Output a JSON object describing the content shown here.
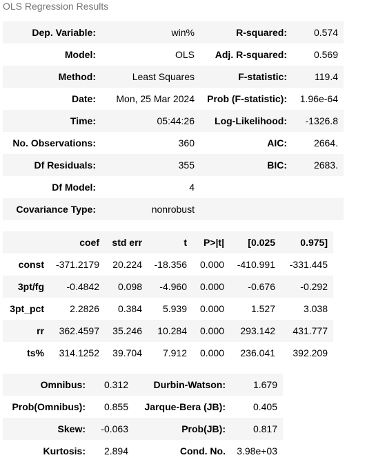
{
  "caption": "OLS Regression Results",
  "summary": {
    "rows": [
      [
        "Dep. Variable:",
        "win%",
        "R-squared:",
        "0.574"
      ],
      [
        "Model:",
        "OLS",
        "Adj. R-squared:",
        "0.569"
      ],
      [
        "Method:",
        "Least Squares",
        "F-statistic:",
        "119.4"
      ],
      [
        "Date:",
        "Mon, 25 Mar 2024",
        "Prob (F-statistic):",
        "1.96e-64"
      ],
      [
        "Time:",
        "05:44:26",
        "Log-Likelihood:",
        "-1326.8"
      ],
      [
        "No. Observations:",
        "360",
        "AIC:",
        "2664."
      ],
      [
        "Df Residuals:",
        "355",
        "BIC:",
        "2683."
      ],
      [
        "Df Model:",
        "4",
        "",
        ""
      ],
      [
        "Covariance Type:",
        "nonrobust",
        "",
        ""
      ]
    ]
  },
  "coef_table": {
    "headers": [
      "",
      "coef",
      "std err",
      "t",
      "P>|t|",
      "[0.025",
      "0.975]"
    ],
    "rows": [
      [
        "const",
        "-371.2179",
        "20.224",
        "-18.356",
        "0.000",
        "-410.991",
        "-331.445"
      ],
      [
        "3pt/fg",
        "-0.4842",
        "0.098",
        "-4.960",
        "0.000",
        "-0.676",
        "-0.292"
      ],
      [
        "3pt_pct",
        "2.2826",
        "0.384",
        "5.939",
        "0.000",
        "1.527",
        "3.038"
      ],
      [
        "rr",
        "362.4597",
        "35.246",
        "10.284",
        "0.000",
        "293.142",
        "431.777"
      ],
      [
        "ts%",
        "314.1252",
        "39.704",
        "7.912",
        "0.000",
        "236.041",
        "392.209"
      ]
    ]
  },
  "diagnostics": {
    "rows": [
      [
        "Omnibus:",
        "0.312",
        "Durbin-Watson:",
        "1.679"
      ],
      [
        "Prob(Omnibus):",
        "0.855",
        "Jarque-Bera (JB):",
        "0.405"
      ],
      [
        "Skew:",
        "-0.063",
        "Prob(JB):",
        "0.817"
      ],
      [
        "Kurtosis:",
        "2.894",
        "Cond. No.",
        "3.98e+03"
      ]
    ]
  }
}
